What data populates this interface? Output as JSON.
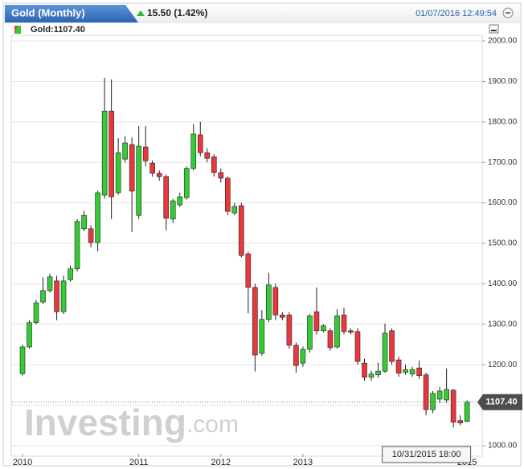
{
  "chart_data": {
    "type": "candlestick",
    "title": "Gold (Monthly)",
    "change": "15.50 (1.42%)",
    "datetime": "01/07/2016 12:49:54",
    "legend": "Gold:1107.40",
    "watermark": [
      "Investing",
      ".com"
    ],
    "cursor_label": "10/31/2015 18:00",
    "last_price": {
      "value": 1107.4,
      "label": "1107.40"
    },
    "up_color": "#33cc33",
    "down_color": "#e8383d",
    "categories": [
      "2010",
      null,
      null,
      null,
      null,
      null,
      null,
      null,
      null,
      null,
      null,
      null,
      null,
      null,
      null,
      null,
      null,
      "2011",
      null,
      null,
      null,
      null,
      null,
      null,
      null,
      null,
      null,
      null,
      null,
      "2012",
      null,
      null,
      null,
      null,
      null,
      null,
      null,
      null,
      null,
      null,
      null,
      "2013",
      null,
      null,
      null,
      null,
      null,
      null,
      null,
      null,
      null,
      null,
      null,
      null,
      null,
      null,
      null,
      null,
      null,
      null,
      null,
      null,
      null,
      null,
      null,
      "2015"
    ],
    "open": [
      1178,
      1244,
      1304,
      1355,
      1383,
      1407,
      1331,
      1410,
      1437,
      1536,
      1536,
      1502,
      1619,
      1827,
      1625,
      1708,
      1744,
      1569,
      1738,
      1698,
      1673,
      1665,
      1560,
      1595,
      1613,
      1685,
      1768,
      1724,
      1714,
      1675,
      1661,
      1575,
      1593,
      1474,
      1391,
      1228,
      1312,
      1391,
      1323,
      1323,
      1248,
      1204,
      1238,
      1331,
      1284,
      1284,
      1244,
      1323,
      1284,
      1282,
      1204,
      1169,
      1175,
      1184,
      1284,
      1212,
      1181,
      1177,
      1192,
      1175,
      1089,
      1115,
      1113,
      1137,
      1062,
      1060
    ],
    "high": [
      1250,
      1310,
      1360,
      1416,
      1425,
      1420,
      1420,
      1445,
      1560,
      1580,
      1545,
      1630,
      1909,
      1905,
      1760,
      1765,
      1762,
      1790,
      1790,
      1705,
      1680,
      1670,
      1610,
      1625,
      1690,
      1795,
      1800,
      1735,
      1720,
      1685,
      1665,
      1600,
      1600,
      1480,
      1400,
      1335,
      1427,
      1400,
      1330,
      1330,
      1255,
      1245,
      1325,
      1391,
      1300,
      1290,
      1337,
      1341,
      1290,
      1290,
      1215,
      1185,
      1205,
      1302,
      1290,
      1220,
      1200,
      1195,
      1210,
      1180,
      1135,
      1145,
      1190,
      1140,
      1075,
      1112
    ],
    "low": [
      1173,
      1240,
      1300,
      1350,
      1378,
      1310,
      1325,
      1405,
      1430,
      1530,
      1490,
      1480,
      1610,
      1560,
      1620,
      1700,
      1528,
      1560,
      1690,
      1665,
      1655,
      1532,
      1550,
      1590,
      1608,
      1680,
      1715,
      1700,
      1665,
      1650,
      1570,
      1570,
      1465,
      1327,
      1183,
      1222,
      1305,
      1310,
      1310,
      1240,
      1180,
      1195,
      1230,
      1275,
      1280,
      1235,
      1240,
      1275,
      1275,
      1200,
      1160,
      1160,
      1168,
      1180,
      1200,
      1170,
      1175,
      1170,
      1165,
      1075,
      1080,
      1105,
      1105,
      1045,
      1050,
      1058
    ],
    "close": [
      1244,
      1304,
      1353,
      1383,
      1417,
      1331,
      1407,
      1437,
      1554,
      1569,
      1502,
      1625,
      1827,
      1615,
      1724,
      1748,
      1629,
      1740,
      1704,
      1673,
      1665,
      1562,
      1605,
      1615,
      1685,
      1770,
      1724,
      1710,
      1675,
      1661,
      1579,
      1591,
      1470,
      1391,
      1224,
      1312,
      1397,
      1323,
      1317,
      1248,
      1198,
      1238,
      1321,
      1284,
      1296,
      1242,
      1321,
      1282,
      1280,
      1208,
      1169,
      1177,
      1184,
      1278,
      1208,
      1179,
      1188,
      1188,
      1173,
      1089,
      1129,
      1135,
      1139,
      1058,
      1056,
      1107.4
    ],
    "ylim": [
      980,
      2010
    ],
    "yticks": [
      {
        "value": 1000,
        "label": "1000.00"
      },
      {
        "value": 1100,
        "label": "1100.00"
      },
      {
        "value": 1200,
        "label": "1200.00"
      },
      {
        "value": 1300,
        "label": "1300.00"
      },
      {
        "value": 1400,
        "label": "1400.00"
      },
      {
        "value": 1500,
        "label": "1500.00"
      },
      {
        "value": 1600,
        "label": "1600.00"
      },
      {
        "value": 1700,
        "label": "1700.00"
      },
      {
        "value": 1800,
        "label": "1800.00"
      },
      {
        "value": 1900,
        "label": "1900.00"
      },
      {
        "value": 2000,
        "label": "2000.00"
      }
    ],
    "grid": true
  }
}
